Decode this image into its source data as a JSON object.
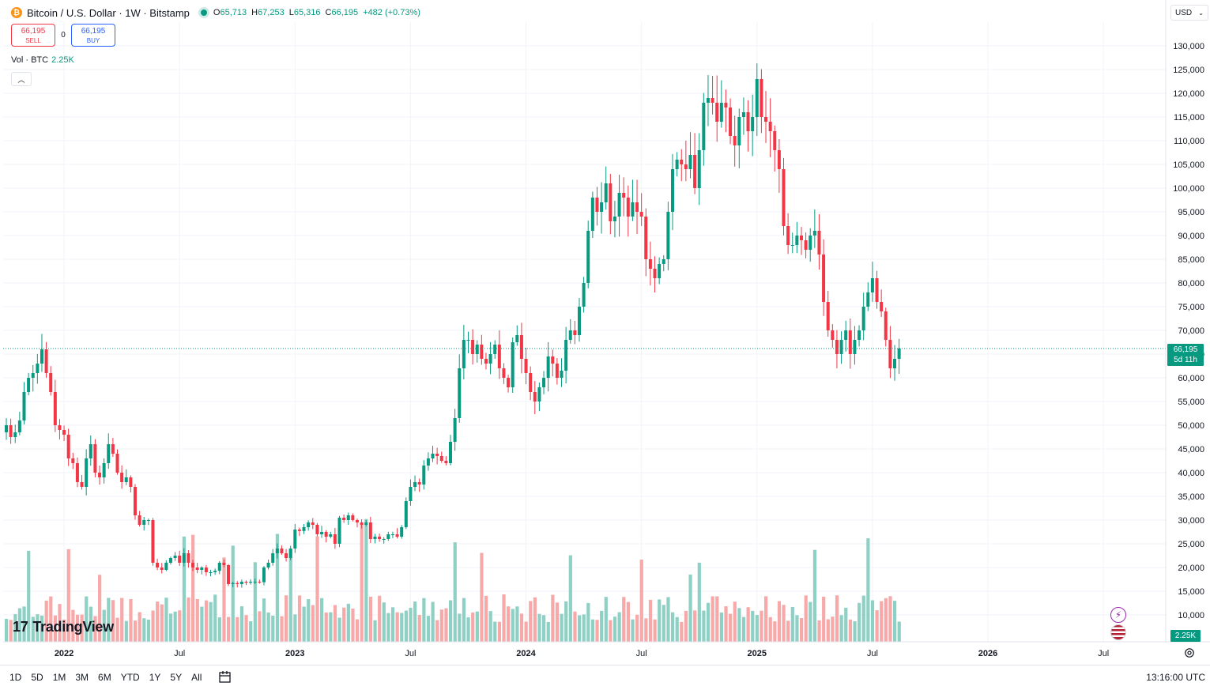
{
  "header": {
    "symbol_title": "Bitcoin / U.S. Dollar · 1W · Bitstamp",
    "icon": "bitcoin-icon",
    "ohlc": {
      "o_label": "O",
      "o": "65,713",
      "h_label": "H",
      "h": "67,253",
      "l_label": "L",
      "l": "65,316",
      "c_label": "C",
      "c": "66,195",
      "change": "+482 (+0.73%)"
    }
  },
  "trade": {
    "sell_price": "66,195",
    "sell_label": "SELL",
    "spread": "0",
    "buy_price": "66,195",
    "buy_label": "BUY"
  },
  "volume_legend": {
    "label": "Vol · BTC",
    "value": "2.25K"
  },
  "currency": {
    "label": "USD"
  },
  "last_price": {
    "value": "66,195",
    "countdown": "5d 11h"
  },
  "volume_tag": "2.25K",
  "logo": {
    "text": "TradingView"
  },
  "range_buttons": [
    "1D",
    "5D",
    "1M",
    "3M",
    "6M",
    "YTD",
    "1Y",
    "5Y",
    "All"
  ],
  "timezone": "13:16:00 UTC",
  "colors": {
    "up": "#089981",
    "down": "#f23645",
    "up_vol": "#8fd0c4",
    "down_vol": "#f7a8a8",
    "grid": "#f0f3fa"
  },
  "chart_data": {
    "type": "candlestick",
    "interval": "1W",
    "y_range": [
      0,
      132000
    ],
    "y_ticks": [
      10000,
      15000,
      20000,
      25000,
      30000,
      35000,
      40000,
      45000,
      50000,
      55000,
      60000,
      65000,
      70000,
      75000,
      80000,
      85000,
      90000,
      95000,
      100000,
      105000,
      110000,
      115000,
      120000,
      125000,
      130000
    ],
    "y_tick_labels": [
      "10,000",
      "15,000",
      "20,000",
      "25,000",
      "30,000",
      "35,000",
      "40,000",
      "45,000",
      "50,000",
      "55,000",
      "60,000",
      "65,000",
      "70,000",
      "75,000",
      "80,000",
      "85,000",
      "90,000",
      "95,000",
      "100,000",
      "105,000",
      "110,000",
      "115,000",
      "120,000",
      "125,000",
      "130,000"
    ],
    "x_ticks": [
      {
        "label": "2022",
        "week": 13
      },
      {
        "label": "Jul",
        "week": 39
      },
      {
        "label": "2023",
        "week": 65
      },
      {
        "label": "Jul",
        "week": 91
      },
      {
        "label": "2024",
        "week": 117
      },
      {
        "label": "Jul",
        "week": 143
      },
      {
        "label": "2025",
        "week": 169
      },
      {
        "label": "Jul",
        "week": 195
      },
      {
        "label": "2026",
        "week": 221
      },
      {
        "label": "Jul",
        "week": 247
      }
    ],
    "closes": [
      50000,
      47500,
      48500,
      51000,
      57000,
      60000,
      61000,
      63000,
      66000,
      61000,
      57000,
      50000,
      49000,
      48000,
      43000,
      42000,
      38000,
      37000,
      43000,
      46000,
      40000,
      39000,
      42000,
      46000,
      44000,
      40000,
      38000,
      39000,
      37000,
      31000,
      29000,
      30000,
      30000,
      21000,
      20000,
      19500,
      21000,
      22000,
      22500,
      21000,
      23000,
      21000,
      20000,
      19500,
      20000,
      19000,
      19000,
      19300,
      21000,
      20500,
      16500,
      16700,
      16500,
      17000,
      16800,
      17000,
      17000,
      16900,
      20000,
      21000,
      23000,
      24000,
      23000,
      22000,
      24000,
      28000,
      27700,
      28500,
      29500,
      29000,
      27000,
      27500,
      26500,
      27000,
      25000,
      30500,
      30000,
      31000,
      30000,
      29500,
      29000,
      29500,
      26000,
      26500,
      26000,
      26000,
      27000,
      27000,
      26500,
      28500,
      34000,
      37000,
      38000,
      37500,
      41500,
      43000,
      44000,
      43500,
      42500,
      42000,
      46500,
      51500,
      62000,
      68000,
      68000,
      65000,
      67000,
      64000,
      63000,
      65000,
      67000,
      62000,
      60000,
      58000,
      67500,
      69000,
      64000,
      61000,
      57000,
      55000,
      58000,
      60000,
      64500,
      63000,
      60000,
      61500,
      68000,
      70000,
      69000,
      75000,
      80000,
      91000,
      98000,
      95000,
      97000,
      101000,
      93000,
      94000,
      99000,
      98000,
      94000,
      97000,
      95000,
      94000,
      85000,
      83000,
      81000,
      84000,
      85000,
      95000,
      104000,
      106000,
      105000,
      104000,
      107000,
      100000,
      108000,
      118000,
      119000,
      118000,
      114000,
      118000,
      117000,
      111000,
      109000,
      115000,
      116000,
      112000,
      115000,
      123000,
      115000,
      114000,
      112000,
      108000,
      104000,
      92000,
      88000,
      88000,
      90000,
      89000,
      87000,
      90000,
      91000,
      86000,
      76000,
      70000,
      68000,
      65000,
      68000,
      70000,
      65000,
      68000,
      70000,
      75000,
      78000,
      81000,
      76000,
      74000,
      68000,
      62000,
      64000,
      66195
    ],
    "volume_note": "Volume histogram in BTC on lower pane"
  }
}
